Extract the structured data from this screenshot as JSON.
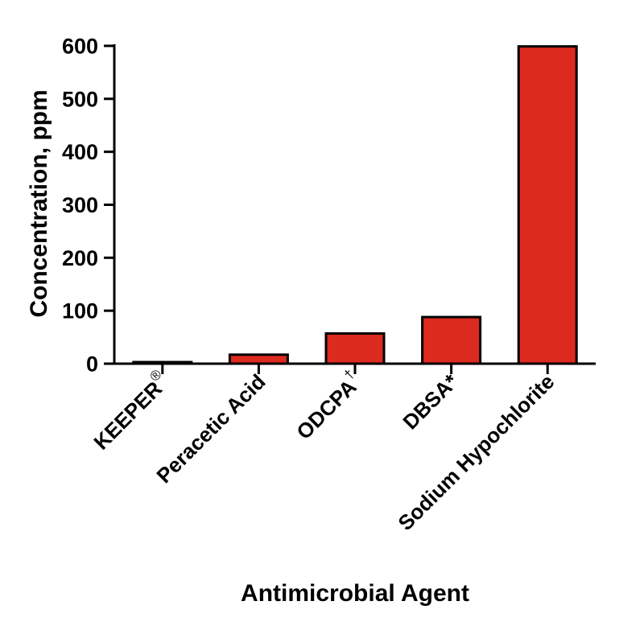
{
  "chart_data": {
    "type": "bar",
    "title": "",
    "xlabel": "Antimicrobial Agent",
    "ylabel": "Concentration, ppm",
    "ylim": [
      0,
      600
    ],
    "yticks": [
      "0",
      "100",
      "200",
      "300",
      "400",
      "500",
      "600"
    ],
    "grid": false,
    "categories": [
      {
        "name": "KEEPER",
        "mark": "®"
      },
      {
        "name": "Peracetic Acid",
        "mark": ""
      },
      {
        "name": "ODCPA",
        "mark": "†"
      },
      {
        "name": "DBSA*",
        "mark": ""
      },
      {
        "name": "Sodium Hypochlorite",
        "mark": ""
      }
    ],
    "values": [
      3,
      17,
      57,
      88,
      599
    ],
    "colors": {
      "bar": "#dc2a1f",
      "edge": "#000000"
    }
  }
}
